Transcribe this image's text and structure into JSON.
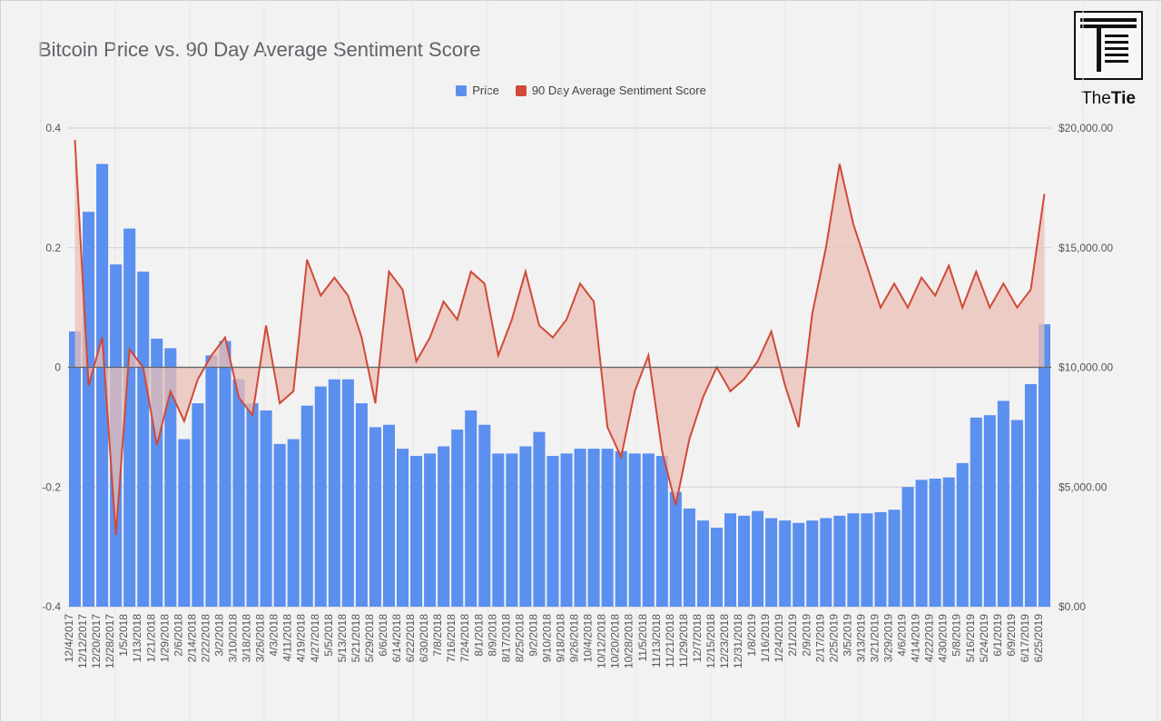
{
  "header": {
    "title": "Bitcoin Price vs. 90 Day Average Sentiment Score"
  },
  "logo": {
    "text_light": "The",
    "text_bold": "Tie",
    "icon": "the-tie-logo-icon"
  },
  "legend": [
    {
      "label": "Price",
      "color": "#5b8ff0"
    },
    {
      "label": "90 Day Average Sentiment Score",
      "color": "#d04a37"
    }
  ],
  "chart_data": {
    "type": "bar+area",
    "title": "Bitcoin Price vs. 90 Day Average Sentiment Score",
    "left_axis": {
      "min": -0.4,
      "max": 0.4,
      "ticks": [
        "0.4",
        "0.2",
        "0",
        "-0.2",
        "-0.4"
      ]
    },
    "right_axis": {
      "min": 0,
      "max": 20000,
      "ticks": [
        "$20,000.00",
        "$15,000.00",
        "$10,000.00",
        "$5,000.00",
        "$0.00"
      ]
    },
    "x_tick_labels": [
      "12/4/2017",
      "12/12/2017",
      "12/20/2017",
      "12/28/2017",
      "1/5/2018",
      "1/13/2018",
      "1/21/2018",
      "1/29/2018",
      "2/6/2018",
      "2/14/2018",
      "2/22/2018",
      "3/2/2018",
      "3/10/2018",
      "3/18/2018",
      "3/26/2018",
      "4/3/2018",
      "4/11/2018",
      "4/19/2018",
      "4/27/2018",
      "5/5/2018",
      "5/13/2018",
      "5/21/2018",
      "5/29/2018",
      "6/6/2018",
      "6/14/2018",
      "6/22/2018",
      "6/30/2018",
      "7/8/2018",
      "7/16/2018",
      "7/24/2018",
      "8/1/2018",
      "8/9/2018",
      "8/17/2018",
      "8/25/2018",
      "9/2/2018",
      "9/10/2018",
      "9/18/2018",
      "9/26/2018",
      "10/4/2018",
      "10/12/2018",
      "10/20/2018",
      "10/28/2018",
      "11/5/2018",
      "11/13/2018",
      "11/21/2018",
      "11/29/2018",
      "12/7/2018",
      "12/15/2018",
      "12/23/2018",
      "12/31/2018",
      "1/8/2019",
      "1/16/2019",
      "1/24/2019",
      "2/1/2019",
      "2/9/2019",
      "2/17/2019",
      "2/25/2019",
      "3/5/2019",
      "3/13/2019",
      "3/21/2019",
      "3/29/2019",
      "4/6/2019",
      "4/14/2019",
      "4/22/2019",
      "4/30/2019",
      "5/8/2019",
      "5/16/2019",
      "5/24/2019",
      "6/1/2019",
      "6/9/2019",
      "6/17/2019",
      "6/25/2019"
    ],
    "series": [
      {
        "name": "Price",
        "type": "bar",
        "axis": "right",
        "x": [
          "12/4/2017",
          "12/12/2017",
          "12/20/2017",
          "12/28/2017",
          "1/5/2018",
          "1/13/2018",
          "1/21/2018",
          "1/29/2018",
          "2/6/2018",
          "2/14/2018",
          "2/22/2018",
          "3/2/2018",
          "3/10/2018",
          "3/18/2018",
          "3/26/2018",
          "4/3/2018",
          "4/11/2018",
          "4/19/2018",
          "4/27/2018",
          "5/5/2018",
          "5/13/2018",
          "5/21/2018",
          "5/29/2018",
          "6/6/2018",
          "6/14/2018",
          "6/22/2018",
          "6/30/2018",
          "7/8/2018",
          "7/16/2018",
          "7/24/2018",
          "8/1/2018",
          "8/9/2018",
          "8/17/2018",
          "8/25/2018",
          "9/2/2018",
          "9/10/2018",
          "9/18/2018",
          "9/26/2018",
          "10/4/2018",
          "10/12/2018",
          "10/20/2018",
          "10/28/2018",
          "11/5/2018",
          "11/13/2018",
          "11/21/2018",
          "11/29/2018",
          "12/7/2018",
          "12/15/2018",
          "12/23/2018",
          "12/31/2018",
          "1/8/2019",
          "1/16/2019",
          "1/24/2019",
          "2/1/2019",
          "2/9/2019",
          "2/17/2019",
          "2/25/2019",
          "3/5/2019",
          "3/13/2019",
          "3/21/2019",
          "3/29/2019",
          "4/6/2019",
          "4/14/2019",
          "4/22/2019",
          "4/30/2019",
          "5/8/2019",
          "5/16/2019",
          "5/24/2019",
          "6/1/2019",
          "6/9/2019",
          "6/17/2019",
          "6/25/2019"
        ],
        "values": [
          11500,
          16500,
          18500,
          14300,
          15800,
          14000,
          11200,
          10800,
          7000,
          8500,
          10500,
          11100,
          9500,
          8500,
          8200,
          6800,
          7000,
          8400,
          9200,
          9500,
          9500,
          8500,
          7500,
          7600,
          6600,
          6300,
          6400,
          6700,
          7400,
          8200,
          7600,
          6400,
          6400,
          6700,
          7300,
          6300,
          6400,
          6600,
          6600,
          6600,
          6500,
          6400,
          6400,
          6300,
          4800,
          4100,
          3600,
          3300,
          3900,
          3800,
          4000,
          3700,
          3600,
          3500,
          3600,
          3700,
          3800,
          3900,
          3900,
          3950,
          4050,
          5000,
          5300,
          5350,
          5400,
          6000,
          7900,
          8000,
          8600,
          7800,
          9300,
          11800
        ],
        "color": "#5b8ff0"
      },
      {
        "name": "90 Day Average Sentiment Score",
        "type": "area",
        "axis": "left",
        "x": [
          "12/4/2017",
          "12/12/2017",
          "12/20/2017",
          "12/28/2017",
          "1/5/2018",
          "1/13/2018",
          "1/21/2018",
          "1/29/2018",
          "2/6/2018",
          "2/14/2018",
          "2/22/2018",
          "3/2/2018",
          "3/10/2018",
          "3/18/2018",
          "3/26/2018",
          "4/3/2018",
          "4/11/2018",
          "4/19/2018",
          "4/27/2018",
          "5/5/2018",
          "5/13/2018",
          "5/21/2018",
          "5/29/2018",
          "6/6/2018",
          "6/14/2018",
          "6/22/2018",
          "6/30/2018",
          "7/8/2018",
          "7/16/2018",
          "7/24/2018",
          "8/1/2018",
          "8/9/2018",
          "8/17/2018",
          "8/25/2018",
          "9/2/2018",
          "9/10/2018",
          "9/18/2018",
          "9/26/2018",
          "10/4/2018",
          "10/12/2018",
          "10/20/2018",
          "10/28/2018",
          "11/5/2018",
          "11/13/2018",
          "11/21/2018",
          "11/29/2018",
          "12/7/2018",
          "12/15/2018",
          "12/23/2018",
          "12/31/2018",
          "1/8/2019",
          "1/16/2019",
          "1/24/2019",
          "2/1/2019",
          "2/9/2019",
          "2/17/2019",
          "2/25/2019",
          "3/5/2019",
          "3/13/2019",
          "3/21/2019",
          "3/29/2019",
          "4/6/2019",
          "4/14/2019",
          "4/22/2019",
          "4/30/2019",
          "5/8/2019",
          "5/16/2019",
          "5/24/2019",
          "6/1/2019",
          "6/9/2019",
          "6/17/2019",
          "6/25/2019"
        ],
        "values": [
          0.38,
          -0.03,
          0.05,
          -0.28,
          0.03,
          0.0,
          -0.13,
          -0.04,
          -0.09,
          -0.02,
          0.02,
          0.05,
          -0.05,
          -0.08,
          0.07,
          -0.06,
          -0.04,
          0.18,
          0.12,
          0.15,
          0.12,
          0.05,
          -0.06,
          0.16,
          0.13,
          0.01,
          0.05,
          0.11,
          0.08,
          0.16,
          0.14,
          0.02,
          0.08,
          0.16,
          0.07,
          0.05,
          0.08,
          0.14,
          0.11,
          -0.1,
          -0.15,
          -0.04,
          0.02,
          -0.14,
          -0.23,
          -0.12,
          -0.05,
          0.0,
          -0.04,
          -0.02,
          0.01,
          0.06,
          -0.03,
          -0.1,
          0.09,
          0.2,
          0.34,
          0.24,
          0.17,
          0.1,
          0.14,
          0.1,
          0.15,
          0.12,
          0.17,
          0.1,
          0.16,
          0.1,
          0.14,
          0.1,
          0.13,
          0.29
        ],
        "color": "#d04a37",
        "fill": "#e9bfb6"
      }
    ],
    "grid": true,
    "legend_position": "top"
  }
}
